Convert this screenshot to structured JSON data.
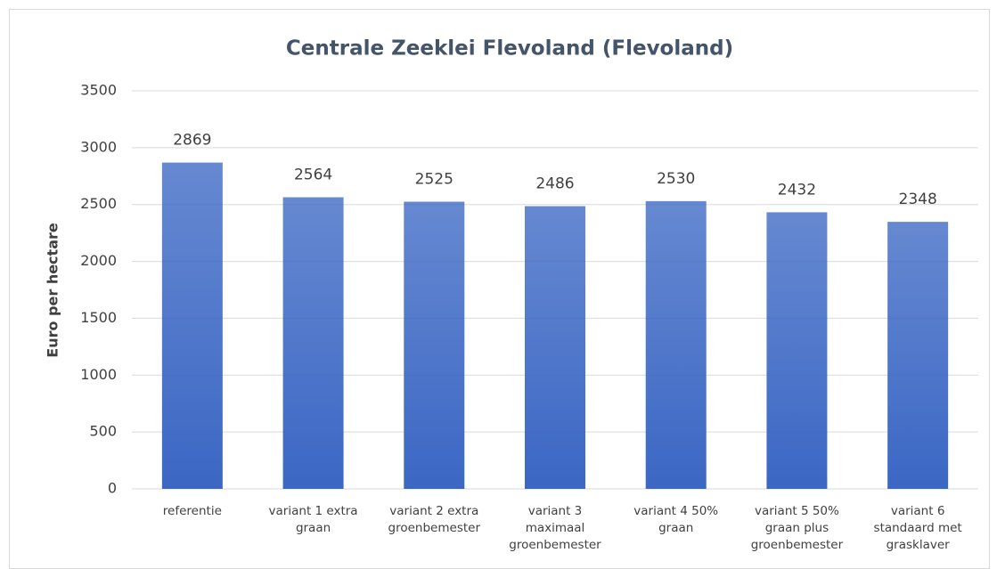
{
  "chart_data": {
    "type": "bar",
    "title": "Centrale Zeeklei Flevoland (Flevoland)",
    "y_label": "Euro per hectare",
    "categories": [
      "referentie",
      "variant 1 extra graan",
      "variant 2 extra groenbemester",
      "variant 3 maximaal groenbemester",
      "variant 4 50% graan",
      "variant 5 50% graan plus groenbemester",
      "variant 6 standaard met grasklaver"
    ],
    "values": [
      2869,
      2564,
      2525,
      2486,
      2530,
      2432,
      2348
    ],
    "color": "#3b67c4",
    "ylim": [
      0,
      3500
    ],
    "yticks": [
      0,
      500,
      1000,
      1500,
      2000,
      2500,
      3000,
      3500
    ],
    "grid": true
  }
}
